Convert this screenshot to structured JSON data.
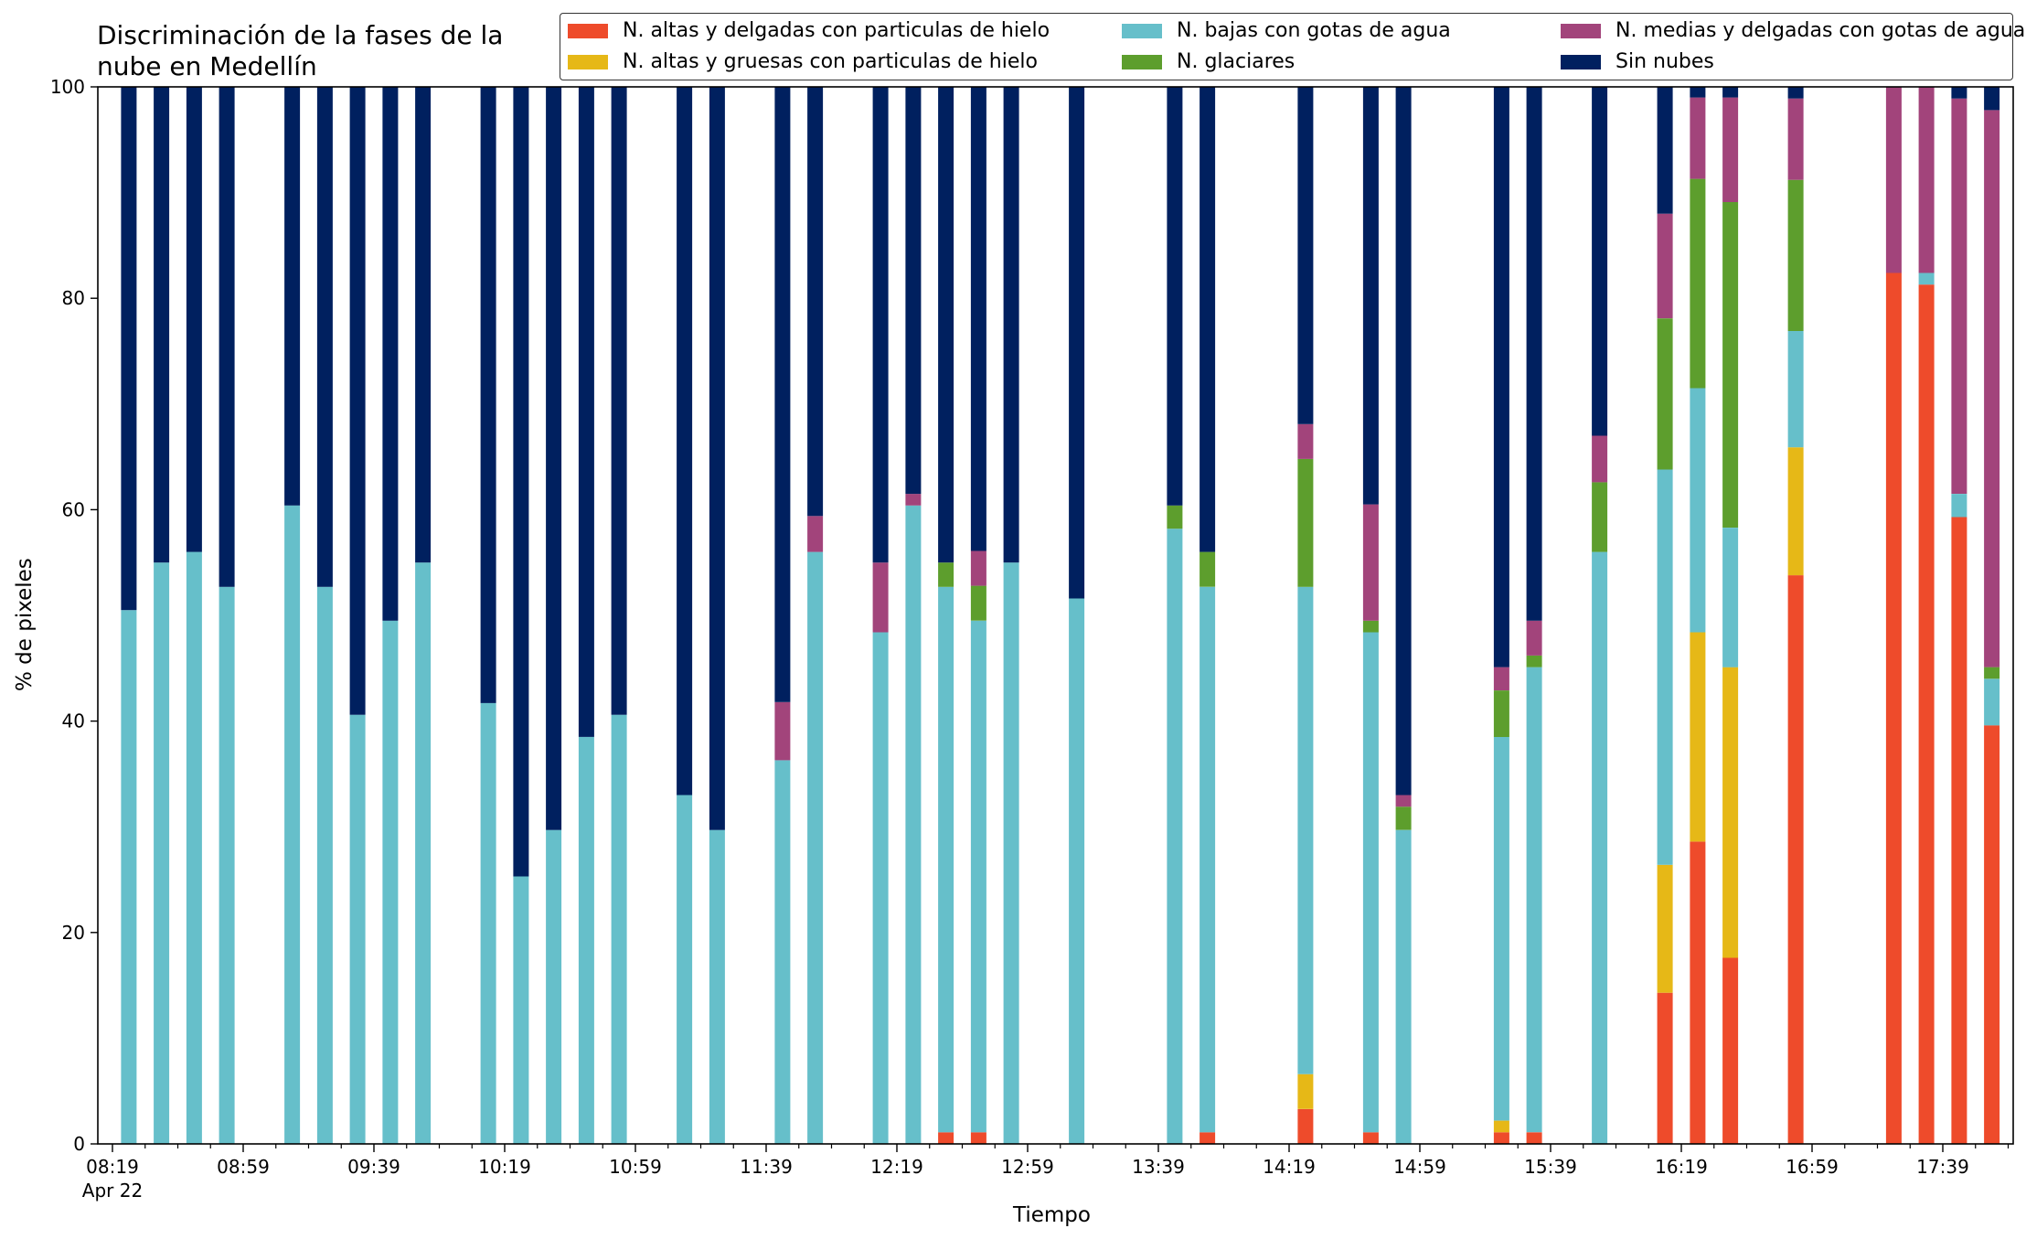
{
  "title_lines": [
    "Discriminación de la fases de la",
    "nube en Medellín"
  ],
  "xlabel": "Tiempo",
  "ylabel": "% de pixeles",
  "legend": [
    {
      "label": "N. altas y delgadas con particulas de hielo",
      "color": "#ee4b2b"
    },
    {
      "label": "N. altas y gruesas con particulas de hielo",
      "color": "#e6b817"
    },
    {
      "label": "N. bajas con gotas de agua",
      "color": "#66bfca"
    },
    {
      "label": "N. glaciares",
      "color": "#5d9e2d"
    },
    {
      "label": "N. medias y delgadas con gotas de agua",
      "color": "#a2447b"
    },
    {
      "label": "Sin nubes",
      "color": "#00205f"
    }
  ],
  "chart_data": {
    "type": "bar",
    "stacked": true,
    "title": "Discriminación de la fases de la nube en Medellín",
    "xlabel": "Tiempo",
    "ylabel": "% de pixeles",
    "ylim": [
      0,
      100
    ],
    "yticks": [
      0,
      20,
      40,
      60,
      80,
      100
    ],
    "xticks": [
      "08:19",
      "08:59",
      "09:39",
      "10:19",
      "10:59",
      "11:39",
      "12:19",
      "12:59",
      "13:39",
      "14:19",
      "14:59",
      "15:39",
      "16:19",
      "16:59",
      "17:39"
    ],
    "xtick_sublabel": "Apr 22",
    "series_order": [
      "N. altas y delgadas con particulas de hielo",
      "N. altas y gruesas con particulas de hielo",
      "N. bajas con gotas de agua",
      "N. glaciares",
      "N. medias y delgadas con gotas de agua",
      "Sin nubes"
    ],
    "bars": [
      {
        "time": "08:24",
        "values": [
          0,
          0,
          50.5,
          0,
          0,
          49.5
        ]
      },
      {
        "time": "08:34",
        "values": [
          0,
          0,
          55,
          0,
          0,
          45
        ]
      },
      {
        "time": "08:44",
        "values": [
          0,
          0,
          56,
          0,
          0,
          44
        ]
      },
      {
        "time": "08:54",
        "values": [
          0,
          0,
          52.7,
          0,
          0,
          47.3
        ]
      },
      {
        "time": "09:14",
        "values": [
          0,
          0,
          60.4,
          0,
          0,
          39.6
        ]
      },
      {
        "time": "09:24",
        "values": [
          0,
          0,
          52.7,
          0,
          0,
          47.3
        ]
      },
      {
        "time": "09:34",
        "values": [
          0,
          0,
          40.6,
          0,
          0,
          59.4
        ]
      },
      {
        "time": "09:44",
        "values": [
          0,
          0,
          49.5,
          0,
          0,
          50.5
        ]
      },
      {
        "time": "09:54",
        "values": [
          0,
          0,
          55,
          0,
          0,
          45
        ]
      },
      {
        "time": "10:14",
        "values": [
          0,
          0,
          41.7,
          0,
          0,
          58.3
        ]
      },
      {
        "time": "10:24",
        "values": [
          0,
          0,
          25.3,
          0,
          0,
          74.7
        ]
      },
      {
        "time": "10:34",
        "values": [
          0,
          0,
          29.7,
          0,
          0,
          70.3
        ]
      },
      {
        "time": "10:44",
        "values": [
          0,
          0,
          38.5,
          0,
          0,
          61.5
        ]
      },
      {
        "time": "10:54",
        "values": [
          0,
          0,
          40.6,
          0,
          0,
          59.4
        ]
      },
      {
        "time": "11:14",
        "values": [
          0,
          0,
          33,
          0,
          0,
          67
        ]
      },
      {
        "time": "11:24",
        "values": [
          0,
          0,
          29.7,
          0,
          0,
          70.3
        ]
      },
      {
        "time": "11:44",
        "values": [
          0,
          0,
          36.3,
          0,
          5.5,
          58.2
        ]
      },
      {
        "time": "11:54",
        "values": [
          0,
          0,
          56,
          0,
          3.4,
          40.6
        ]
      },
      {
        "time": "12:14",
        "values": [
          0,
          0,
          48.4,
          0,
          6.6,
          45
        ]
      },
      {
        "time": "12:24",
        "values": [
          0,
          0,
          60.4,
          0,
          1.1,
          38.5
        ]
      },
      {
        "time": "12:34",
        "values": [
          1.1,
          0,
          51.6,
          2.3,
          0,
          45
        ]
      },
      {
        "time": "12:44",
        "values": [
          1.1,
          0,
          48.4,
          3.3,
          3.3,
          43.9
        ]
      },
      {
        "time": "12:54",
        "values": [
          0,
          0,
          55,
          0,
          0,
          45
        ]
      },
      {
        "time": "13:14",
        "values": [
          0,
          0,
          51.6,
          0,
          0,
          48.4
        ]
      },
      {
        "time": "13:44",
        "values": [
          0,
          0,
          58.2,
          2.2,
          0,
          39.6
        ]
      },
      {
        "time": "13:54",
        "values": [
          1.1,
          0,
          51.6,
          3.3,
          0,
          44
        ]
      },
      {
        "time": "14:24",
        "values": [
          3.3,
          3.3,
          46.1,
          12.1,
          3.3,
          31.9
        ]
      },
      {
        "time": "14:44",
        "values": [
          1.1,
          0,
          47.3,
          1.1,
          11,
          39.5
        ]
      },
      {
        "time": "14:54",
        "values": [
          0,
          0,
          29.7,
          2.2,
          1.1,
          67
        ]
      },
      {
        "time": "15:24",
        "values": [
          1.1,
          1.1,
          36.3,
          4.4,
          2.2,
          54.9
        ]
      },
      {
        "time": "15:34",
        "values": [
          1.1,
          0,
          44,
          1.1,
          3.3,
          50.5
        ]
      },
      {
        "time": "15:54",
        "values": [
          0,
          0,
          56,
          6.6,
          4.4,
          33
        ]
      },
      {
        "time": "16:14",
        "values": [
          14.3,
          12.1,
          37.4,
          14.3,
          9.9,
          12
        ]
      },
      {
        "time": "16:24",
        "values": [
          28.6,
          19.8,
          23.1,
          19.8,
          7.7,
          1
        ]
      },
      {
        "time": "16:34",
        "values": [
          17.6,
          27.5,
          13.2,
          30.8,
          9.9,
          1
        ]
      },
      {
        "time": "16:54",
        "values": [
          53.8,
          12.1,
          11,
          14.3,
          7.7,
          1.1
        ]
      },
      {
        "time": "17:24",
        "values": [
          82.4,
          0,
          0,
          0,
          17.6,
          0
        ]
      },
      {
        "time": "17:34",
        "values": [
          81.3,
          0,
          1.1,
          0,
          17.6,
          0
        ]
      },
      {
        "time": "17:44",
        "values": [
          59.3,
          0,
          2.2,
          0,
          37.4,
          1.1
        ]
      },
      {
        "time": "17:54",
        "values": [
          39.6,
          0,
          4.4,
          1.1,
          52.7,
          2.2
        ]
      }
    ]
  }
}
